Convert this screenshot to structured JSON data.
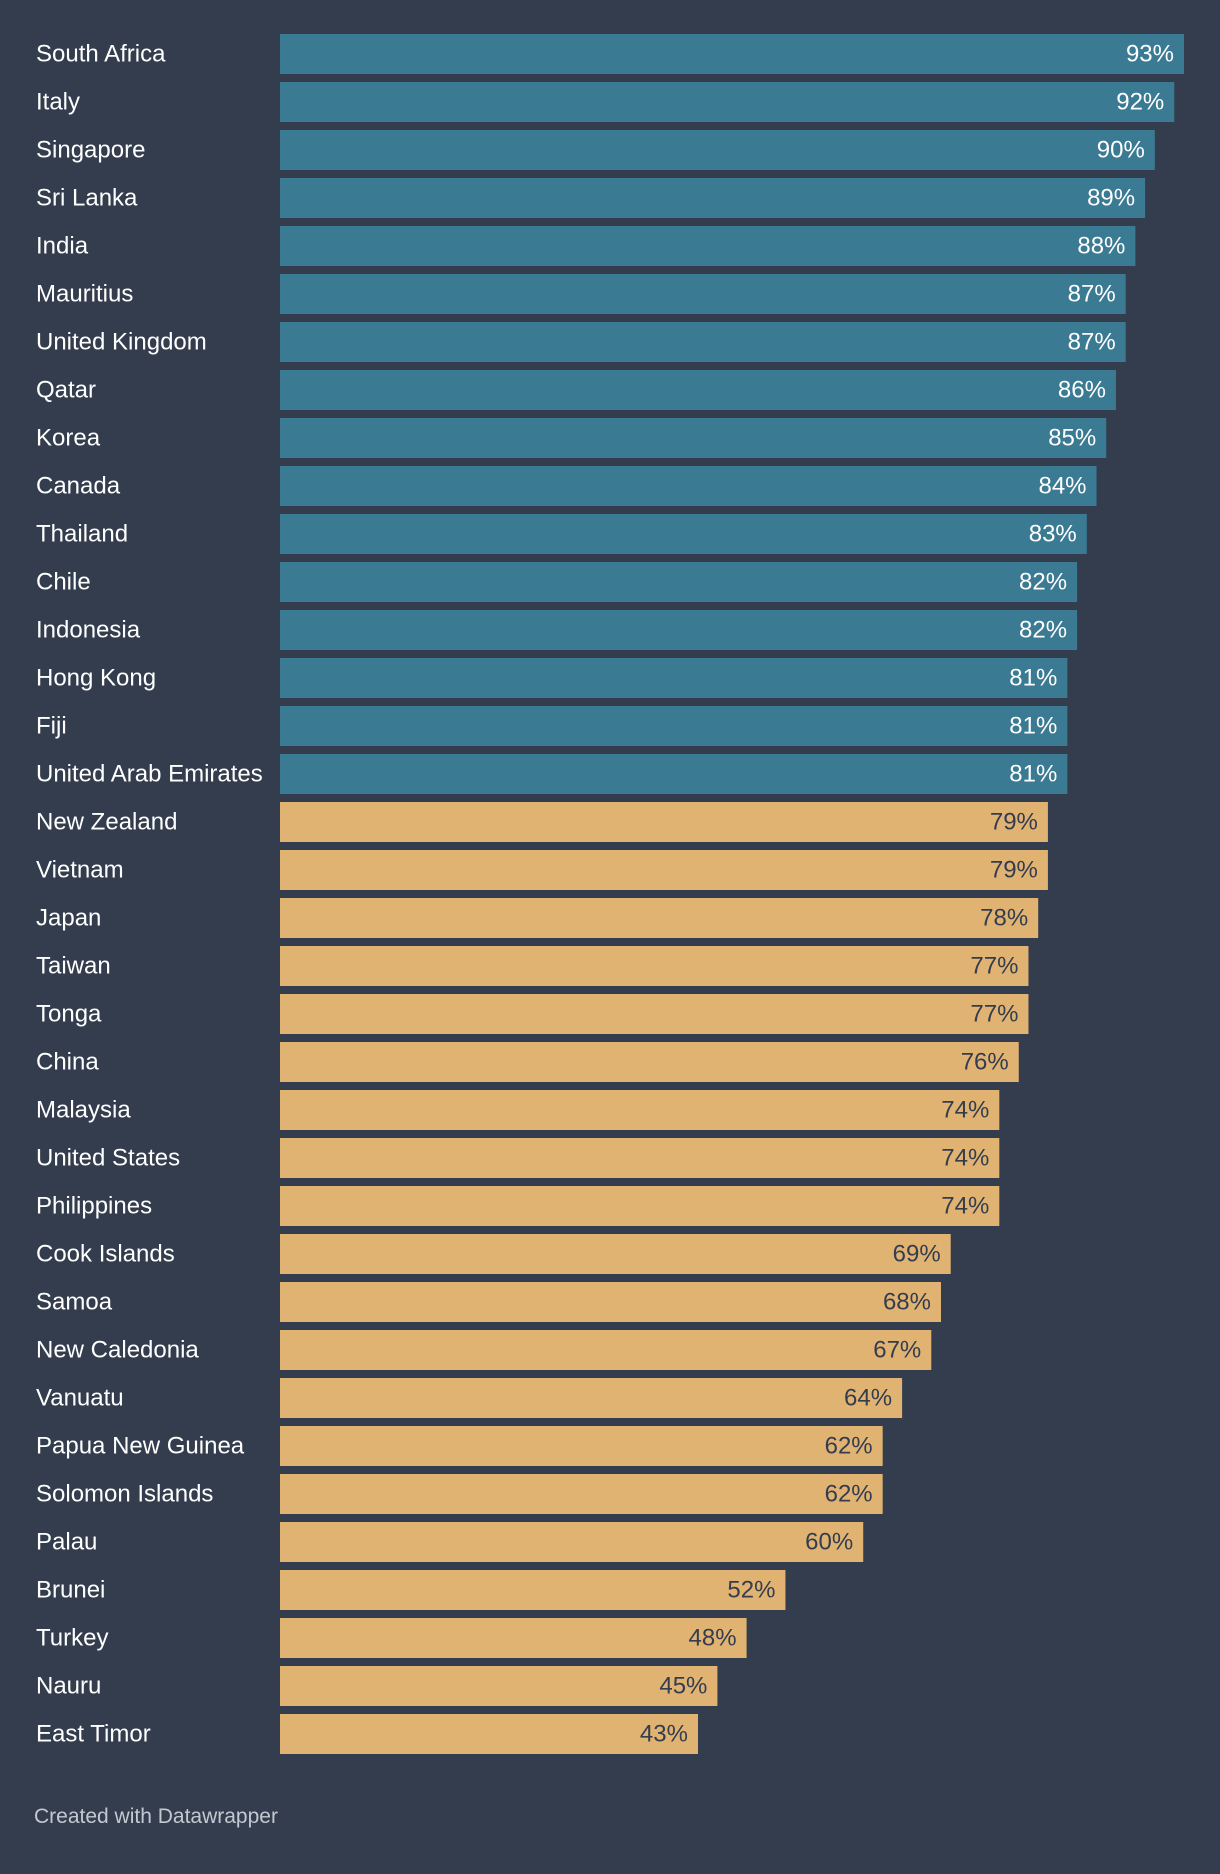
{
  "colors": {
    "background": "#333d4d",
    "highlight_bar": "#3b7a93",
    "base_bar": "#e1b373",
    "highlight_label": "#ffffff",
    "base_label": "#333d4d",
    "category_text": "#ffffff",
    "credit_text": "#c4c9d1"
  },
  "credit": "Created with Datawrapper",
  "chart_data": {
    "type": "bar",
    "orientation": "horizontal",
    "title": "",
    "xlabel": "",
    "ylabel": "",
    "xlim": [
      0,
      93
    ],
    "grid": false,
    "value_suffix": "%",
    "categories": [
      "South Africa",
      "Italy",
      "Singapore",
      "Sri Lanka",
      "India",
      "Mauritius",
      "United Kingdom",
      "Qatar",
      "Korea",
      "Canada",
      "Thailand",
      "Chile",
      "Indonesia",
      "Hong Kong",
      "Fiji",
      "United Arab Emirates",
      "New Zealand",
      "Vietnam",
      "Japan",
      "Taiwan",
      "Tonga",
      "China",
      "Malaysia",
      "United States",
      "Philippines",
      "Cook Islands",
      "Samoa",
      "New Caledonia",
      "Vanuatu",
      "Papua New Guinea",
      "Solomon Islands",
      "Palau",
      "Brunei",
      "Turkey",
      "Nauru",
      "East Timor"
    ],
    "values": [
      93,
      92,
      90,
      89,
      88,
      87,
      87,
      86,
      85,
      84,
      83,
      82,
      82,
      81,
      81,
      81,
      79,
      79,
      78,
      77,
      77,
      76,
      74,
      74,
      74,
      69,
      68,
      67,
      64,
      62,
      62,
      60,
      52,
      48,
      45,
      43
    ],
    "labels": [
      "93%",
      "92%",
      "90%",
      "89%",
      "88%",
      "87%",
      "87%",
      "86%",
      "85%",
      "84%",
      "83%",
      "82%",
      "82%",
      "81%",
      "81%",
      "81%",
      "79%",
      "79%",
      "78%",
      "77%",
      "77%",
      "76%",
      "74%",
      "74%",
      "74%",
      "69%",
      "68%",
      "67%",
      "64%",
      "62%",
      "62%",
      "60%",
      "52%",
      "48%",
      "45%",
      "43%"
    ],
    "highlighted_count": 16
  }
}
